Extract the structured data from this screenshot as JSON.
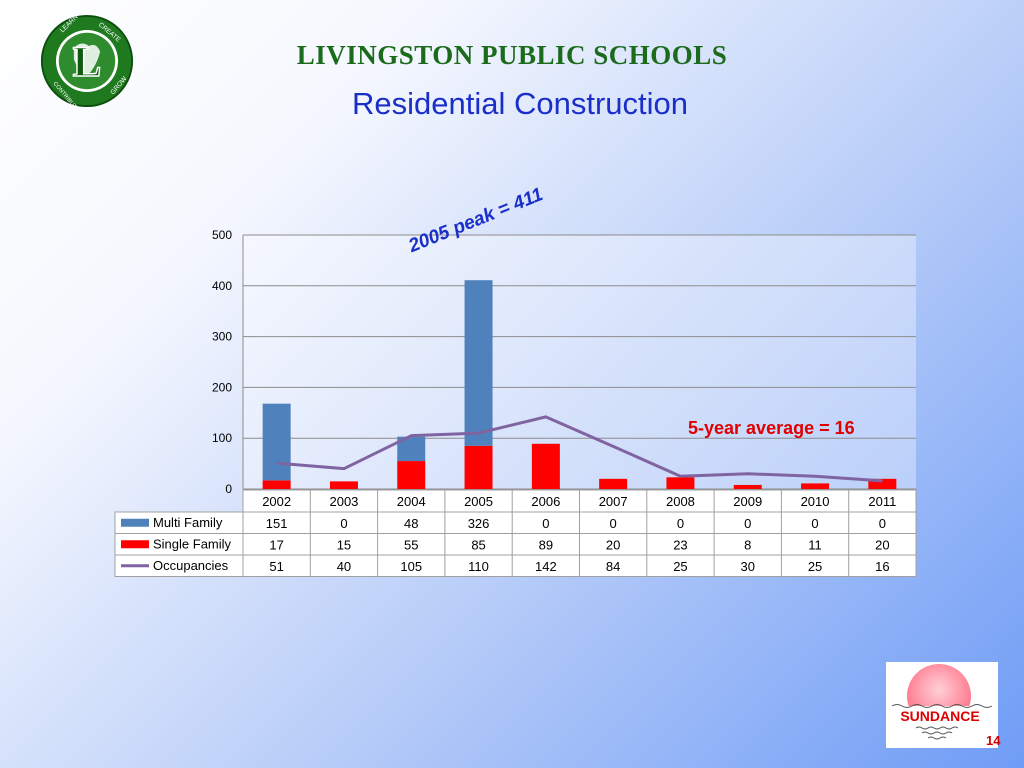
{
  "header": {
    "org_title": "LIVINGSTON PUBLIC SCHOOLS",
    "slide_title": "Residential Construction"
  },
  "logo": {
    "letter": "L",
    "ring_words": [
      "LEARN",
      "CREATE",
      "CONTRIBUTE",
      "GROW"
    ],
    "colors": {
      "ring": "#1f7a1f",
      "center": "#2e8b2e",
      "accent": "#ffffff"
    }
  },
  "annotations": {
    "peak": "2005  peak = 411",
    "average": "5-year average = 16"
  },
  "chart_data": {
    "type": "bar",
    "stacked": true,
    "categories": [
      "2002",
      "2003",
      "2004",
      "2005",
      "2006",
      "2007",
      "2008",
      "2009",
      "2010",
      "2011"
    ],
    "series": [
      {
        "name": "Multi Family",
        "type": "bar",
        "color": "#4f81bd",
        "values": [
          151,
          0,
          48,
          326,
          0,
          0,
          0,
          0,
          0,
          0
        ]
      },
      {
        "name": "Single Family",
        "type": "bar",
        "color": "#ff0000",
        "values": [
          17,
          15,
          55,
          85,
          89,
          20,
          23,
          8,
          11,
          20
        ]
      },
      {
        "name": "Occupancies",
        "type": "line",
        "color": "#8064a2",
        "values": [
          51,
          40,
          105,
          110,
          142,
          84,
          25,
          30,
          25,
          16
        ]
      }
    ],
    "ylim": [
      0,
      500
    ],
    "yticks": [
      0,
      100,
      200,
      300,
      400,
      500
    ],
    "grid": true,
    "legend": "data-table"
  },
  "footer": {
    "brand": "SUNDANCE",
    "page_number": "14",
    "colors": {
      "sun": "#ff7a8c",
      "text": "#e00000"
    }
  }
}
